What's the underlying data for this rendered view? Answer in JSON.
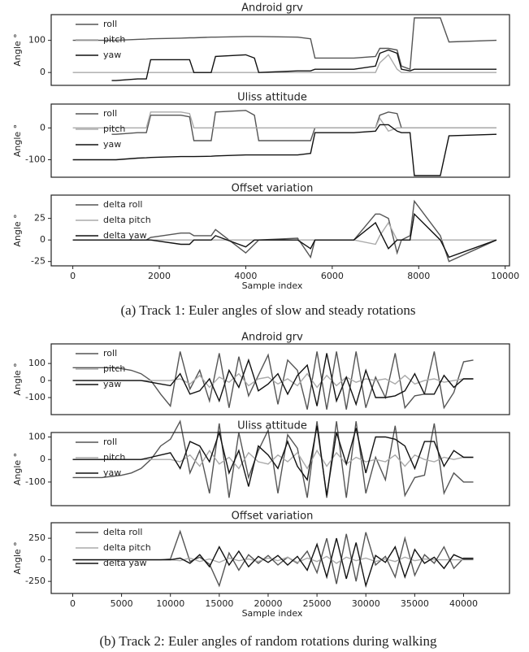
{
  "chart_data": [
    {
      "type": "line",
      "title": "Android grv",
      "ylabel": "Angle °",
      "x": [
        0,
        500,
        900,
        1000,
        1500,
        1700,
        1800,
        2500,
        2700,
        2800,
        3200,
        3300,
        4000,
        4200,
        4300,
        5200,
        5500,
        5600,
        6500,
        7000,
        7100,
        7300,
        7500,
        7600,
        7800,
        7900,
        8500,
        8700,
        9800
      ],
      "xlim": [
        -500,
        10100
      ],
      "ylim": [
        -40,
        180
      ],
      "yticks": [
        0,
        100
      ],
      "legend": "upper left",
      "series": [
        {
          "name": "roll",
          "color": "#555555",
          "values": [
            100,
            100,
            100,
            100,
            103,
            104,
            105,
            107,
            108,
            108,
            110,
            110,
            112,
            112,
            112,
            110,
            105,
            45,
            45,
            50,
            75,
            75,
            70,
            20,
            10,
            170,
            170,
            95,
            100
          ]
        },
        {
          "name": "pitch",
          "color": "#aaaaaa",
          "values": [
            0,
            0,
            0,
            0,
            0,
            0,
            0,
            0,
            0,
            0,
            0,
            0,
            0,
            0,
            0,
            0,
            0,
            0,
            0,
            0,
            30,
            55,
            10,
            0,
            0,
            0,
            0,
            0,
            0
          ]
        },
        {
          "name": "yaw",
          "color": "#111111",
          "values": [
            null,
            null,
            -25,
            -25,
            -20,
            -20,
            40,
            40,
            40,
            0,
            0,
            50,
            55,
            45,
            0,
            5,
            5,
            10,
            10,
            20,
            60,
            70,
            60,
            10,
            5,
            10,
            10,
            10,
            10
          ]
        }
      ]
    },
    {
      "type": "line",
      "title": "Uliss attitude",
      "ylabel": "Angle °",
      "x": [
        0,
        500,
        900,
        1000,
        1500,
        1700,
        1800,
        2500,
        2700,
        2800,
        3200,
        3300,
        4000,
        4200,
        4300,
        5200,
        5500,
        5600,
        6500,
        7000,
        7100,
        7300,
        7500,
        7600,
        7800,
        7900,
        8500,
        8700,
        9800
      ],
      "xlim": [
        -500,
        10100
      ],
      "ylim": [
        -155,
        75
      ],
      "yticks": [
        -100,
        0
      ],
      "legend": "upper left",
      "series": [
        {
          "name": "roll",
          "color": "#555555",
          "values": [
            null,
            null,
            -20,
            -20,
            -15,
            -15,
            40,
            40,
            35,
            -40,
            -40,
            50,
            55,
            40,
            -40,
            -40,
            -40,
            0,
            0,
            0,
            40,
            50,
            45,
            0,
            0,
            0,
            0,
            0,
            0
          ]
        },
        {
          "name": "pitch",
          "color": "#aaaaaa",
          "values": [
            0,
            0,
            0,
            0,
            0,
            0,
            50,
            50,
            45,
            0,
            0,
            0,
            0,
            0,
            0,
            0,
            0,
            0,
            0,
            0,
            30,
            -10,
            0,
            0,
            0,
            0,
            0,
            0,
            0
          ]
        },
        {
          "name": "yaw",
          "color": "#111111",
          "values": [
            -100,
            -100,
            -100,
            -100,
            -95,
            -94,
            -93,
            -90,
            -90,
            -90,
            -89,
            -88,
            -85,
            -85,
            -85,
            -85,
            -80,
            -15,
            -15,
            -10,
            10,
            10,
            -10,
            -15,
            -15,
            -150,
            -150,
            -25,
            -20
          ]
        }
      ]
    },
    {
      "type": "line",
      "title": "Offset variation",
      "ylabel": "Angle °",
      "xlabel": "Sample index",
      "x": [
        0,
        500,
        900,
        1000,
        1500,
        1700,
        1800,
        2500,
        2700,
        2800,
        3200,
        3300,
        4000,
        4200,
        4300,
        5200,
        5500,
        5600,
        6500,
        7000,
        7100,
        7300,
        7500,
        7600,
        7800,
        7900,
        8500,
        8700,
        9800
      ],
      "xlim": [
        -500,
        10100
      ],
      "xticks": [
        0,
        2000,
        4000,
        6000,
        8000,
        10000
      ],
      "ylim": [
        -30,
        52
      ],
      "yticks": [
        -25,
        0,
        25
      ],
      "legend": "upper left",
      "series": [
        {
          "name": "delta roll",
          "color": "#555555",
          "values": [
            0,
            0,
            0,
            0,
            0,
            0,
            3,
            8,
            8,
            5,
            5,
            12,
            -15,
            -5,
            0,
            2,
            -20,
            0,
            0,
            30,
            30,
            25,
            -15,
            0,
            5,
            45,
            5,
            -25,
            0
          ]
        },
        {
          "name": "delta pitch",
          "color": "#aaaaaa",
          "values": [
            0,
            0,
            0,
            0,
            0,
            0,
            0,
            0,
            0,
            0,
            0,
            0,
            0,
            0,
            0,
            0,
            0,
            0,
            0,
            -5,
            5,
            20,
            0,
            0,
            0,
            0,
            0,
            0,
            0
          ]
        },
        {
          "name": "delta yaw",
          "color": "#111111",
          "values": [
            0,
            0,
            0,
            0,
            0,
            0,
            0,
            -5,
            -5,
            0,
            0,
            5,
            -8,
            0,
            0,
            0,
            -10,
            0,
            0,
            20,
            10,
            -10,
            0,
            0,
            0,
            30,
            0,
            -20,
            0
          ]
        }
      ]
    },
    {
      "type": "line",
      "title": "Android grv",
      "ylabel": "Angle °",
      "x": [
        0,
        1000,
        2000,
        3000,
        4000,
        5000,
        6000,
        7000,
        8000,
        9000,
        10000,
        11000,
        12000,
        13000,
        14000,
        15000,
        16000,
        17000,
        18000,
        19000,
        20000,
        21000,
        22000,
        23000,
        24000,
        25000,
        26000,
        27000,
        28000,
        29000,
        30000,
        31000,
        32000,
        33000,
        34000,
        35000,
        36000,
        37000,
        38000,
        39000,
        40000,
        41000
      ],
      "xlim": [
        -2200,
        44700
      ],
      "ylim": [
        -200,
        215
      ],
      "yticks": [
        -100,
        0,
        100
      ],
      "legend": "upper left",
      "series": [
        {
          "name": "roll",
          "color": "#555555",
          "values": [
            75,
            75,
            75,
            75,
            75,
            70,
            60,
            40,
            0,
            -80,
            -150,
            170,
            -50,
            60,
            -120,
            160,
            -160,
            140,
            -90,
            30,
            150,
            -140,
            120,
            60,
            -170,
            170,
            -170,
            170,
            -170,
            170,
            -160,
            20,
            -100,
            160,
            -160,
            -90,
            -80,
            170,
            -160,
            -70,
            110,
            120
          ]
        },
        {
          "name": "pitch",
          "color": "#aaaaaa",
          "values": [
            0,
            0,
            0,
            0,
            0,
            0,
            0,
            0,
            0,
            0,
            0,
            10,
            -20,
            30,
            -40,
            20,
            -10,
            40,
            -30,
            10,
            20,
            -20,
            10,
            -30,
            40,
            -40,
            30,
            -30,
            20,
            -10,
            10,
            0,
            10,
            -20,
            30,
            -20,
            0,
            10,
            -10,
            0,
            10,
            10
          ]
        },
        {
          "name": "yaw",
          "color": "#111111",
          "values": [
            0,
            0,
            0,
            0,
            0,
            0,
            0,
            0,
            -10,
            -20,
            -30,
            40,
            -80,
            -60,
            10,
            -120,
            60,
            -40,
            120,
            -60,
            -20,
            40,
            -80,
            30,
            90,
            -150,
            160,
            -120,
            20,
            -140,
            60,
            -100,
            -100,
            -90,
            -60,
            40,
            -80,
            -80,
            30,
            -40,
            10,
            10
          ]
        }
      ]
    },
    {
      "type": "line",
      "title": "Uliss attitude",
      "ylabel": "Angle °",
      "x": [
        0,
        1000,
        2000,
        3000,
        4000,
        5000,
        6000,
        7000,
        8000,
        9000,
        10000,
        11000,
        12000,
        13000,
        14000,
        15000,
        16000,
        17000,
        18000,
        19000,
        20000,
        21000,
        22000,
        23000,
        24000,
        25000,
        26000,
        27000,
        28000,
        29000,
        30000,
        31000,
        32000,
        33000,
        34000,
        35000,
        36000,
        37000,
        38000,
        39000,
        40000,
        41000
      ],
      "xlim": [
        -2200,
        44700
      ],
      "ylim": [
        -205,
        120
      ],
      "yticks": [
        -100,
        0,
        100
      ],
      "legend": "upper left",
      "series": [
        {
          "name": "roll",
          "color": "#555555",
          "values": [
            -80,
            -80,
            -80,
            -80,
            -75,
            -70,
            -60,
            -40,
            0,
            60,
            90,
            170,
            -60,
            40,
            -150,
            160,
            -170,
            120,
            -80,
            40,
            130,
            -150,
            110,
            50,
            -170,
            170,
            -170,
            170,
            -170,
            170,
            -150,
            10,
            -90,
            150,
            -160,
            -80,
            -70,
            160,
            -150,
            -60,
            -100,
            -100
          ]
        },
        {
          "name": "pitch",
          "color": "#aaaaaa",
          "values": [
            0,
            0,
            0,
            0,
            0,
            0,
            0,
            0,
            0,
            0,
            0,
            -10,
            20,
            -30,
            40,
            -20,
            10,
            -40,
            30,
            -10,
            -20,
            20,
            -10,
            30,
            -40,
            40,
            -30,
            30,
            -20,
            10,
            -10,
            0,
            -10,
            20,
            -30,
            20,
            0,
            -10,
            10,
            0,
            10,
            10
          ]
        },
        {
          "name": "yaw",
          "color": "#111111",
          "values": [
            0,
            0,
            0,
            0,
            0,
            0,
            0,
            0,
            10,
            20,
            30,
            -40,
            80,
            60,
            -10,
            120,
            -60,
            40,
            -120,
            60,
            20,
            -40,
            80,
            -30,
            -90,
            150,
            -160,
            120,
            -20,
            140,
            -60,
            100,
            100,
            90,
            60,
            -40,
            80,
            80,
            -30,
            40,
            10,
            10
          ]
        }
      ]
    },
    {
      "type": "line",
      "title": "Offset variation",
      "ylabel": "Angle °",
      "xlabel": "Sample index",
      "x": [
        0,
        1000,
        2000,
        3000,
        4000,
        5000,
        6000,
        7000,
        8000,
        9000,
        10000,
        11000,
        12000,
        13000,
        14000,
        15000,
        16000,
        17000,
        18000,
        19000,
        20000,
        21000,
        22000,
        23000,
        24000,
        25000,
        26000,
        27000,
        28000,
        29000,
        30000,
        31000,
        32000,
        33000,
        34000,
        35000,
        36000,
        37000,
        38000,
        39000,
        40000,
        41000
      ],
      "xlim": [
        -2200,
        44700
      ],
      "xticks": [
        0,
        5000,
        10000,
        15000,
        20000,
        25000,
        30000,
        35000,
        40000
      ],
      "ylim": [
        -390,
        430
      ],
      "yticks": [
        -250,
        0,
        250
      ],
      "legend": "upper left",
      "series": [
        {
          "name": "delta roll",
          "color": "#555555",
          "values": [
            0,
            0,
            0,
            0,
            0,
            0,
            0,
            0,
            0,
            0,
            10,
            330,
            -20,
            30,
            -50,
            -300,
            80,
            -120,
            60,
            -40,
            50,
            -60,
            30,
            -40,
            100,
            -150,
            250,
            -280,
            300,
            -250,
            320,
            -60,
            40,
            -200,
            250,
            -180,
            60,
            -40,
            150,
            -100,
            20,
            20
          ]
        },
        {
          "name": "delta pitch",
          "color": "#aaaaaa",
          "values": [
            0,
            0,
            0,
            0,
            0,
            0,
            0,
            0,
            0,
            0,
            0,
            -10,
            20,
            -20,
            10,
            -30,
            20,
            -10,
            10,
            -20,
            20,
            -10,
            30,
            -30,
            20,
            -20,
            40,
            -40,
            30,
            -10,
            20,
            -20,
            10,
            -20,
            30,
            -10,
            10,
            0,
            0,
            0,
            0,
            0
          ]
        },
        {
          "name": "delta yaw",
          "color": "#111111",
          "values": [
            0,
            0,
            0,
            0,
            0,
            0,
            0,
            0,
            0,
            0,
            0,
            20,
            -40,
            60,
            -80,
            150,
            -60,
            100,
            -80,
            40,
            -30,
            50,
            -60,
            40,
            -120,
            180,
            -200,
            250,
            -220,
            200,
            -300,
            50,
            -30,
            150,
            -200,
            120,
            -40,
            30,
            -100,
            60,
            10,
            10
          ]
        }
      ]
    }
  ],
  "captions": [
    "(a) Track 1: Euler angles of slow and steady rotations",
    "(b) Track 2: Euler angles of random rotations during walking"
  ]
}
